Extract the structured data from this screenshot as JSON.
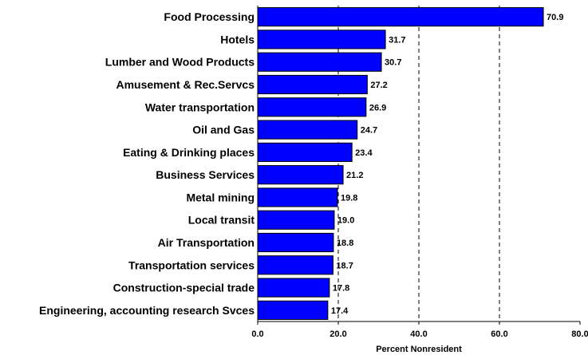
{
  "chart_data": {
    "type": "bar",
    "orientation": "horizontal",
    "categories": [
      "Food Processing",
      "Hotels",
      "Lumber and Wood Products",
      "Amusement & Rec.Servcs",
      "Water transportation",
      "Oil and Gas",
      "Eating & Drinking places",
      "Business Services",
      "Metal mining",
      "Local transit",
      "Air Transportation",
      "Transportation services",
      "Construction-special trade",
      "Engineering, accounting research Svces"
    ],
    "values": [
      70.9,
      31.7,
      30.7,
      27.2,
      26.9,
      24.7,
      23.4,
      21.2,
      19.8,
      19.0,
      18.8,
      18.7,
      17.8,
      17.4
    ],
    "value_labels": [
      "70.9",
      "31.7",
      "30.7",
      "27.2",
      "26.9",
      "24.7",
      "23.4",
      "21.2",
      "19.8",
      "19.0",
      "18.8",
      "18.7",
      "17.8",
      "17.4"
    ],
    "xlabel": "Percent Nonresident",
    "xlim": [
      0,
      80
    ],
    "xticks": [
      0,
      20,
      40,
      60,
      80
    ],
    "xtick_labels": [
      "0.0",
      "20.0",
      "40.0",
      "60.0",
      "80.0"
    ],
    "grid": "vertical dashed",
    "bar_color": "#0000ff"
  }
}
